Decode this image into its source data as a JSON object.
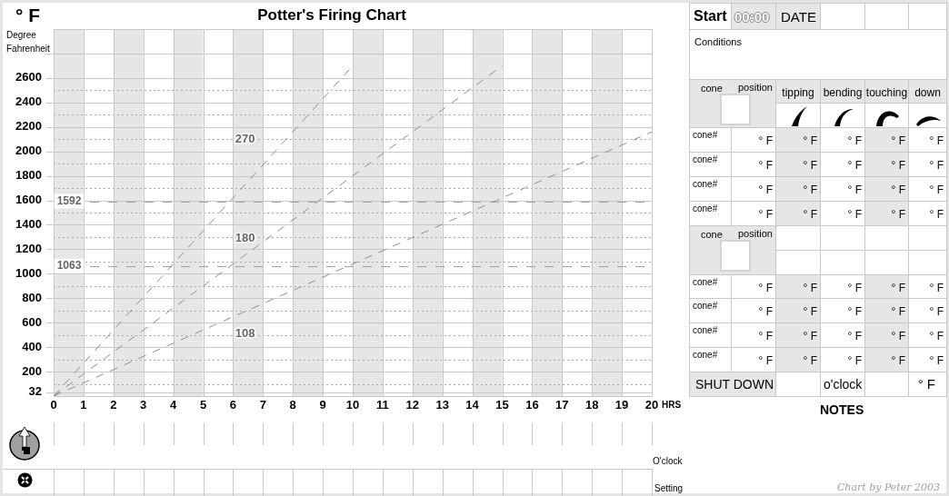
{
  "chart_data": [
    {
      "type": "line",
      "title": "Potter's Firing Chart",
      "xlabel": "HRS",
      "ylabel": "Degree Fahrenheit",
      "series": [
        {
          "name": "270",
          "color": "#909090",
          "x": [
            0,
            10
          ],
          "values": [
            0,
            2700
          ]
        },
        {
          "name": "180",
          "color": "#909090",
          "x": [
            0,
            15
          ],
          "values": [
            0,
            2700
          ]
        },
        {
          "name": "108",
          "color": "#909090",
          "x": [
            0,
            20
          ],
          "values": [
            0,
            2160
          ]
        }
      ],
      "line_style": "dashed",
      "xlim": [
        0,
        20
      ],
      "xticks": [
        0,
        1,
        2,
        3,
        4,
        5,
        6,
        7,
        8,
        9,
        10,
        11,
        12,
        13,
        14,
        15,
        16,
        17,
        18,
        19,
        20
      ],
      "ylim": [
        0,
        3000
      ],
      "yticks": [
        32,
        {
          "value": 100,
          "label": null
        },
        200,
        {
          "value": 300,
          "label": null
        },
        400,
        {
          "value": 500,
          "label": null
        },
        600,
        {
          "value": 700,
          "label": null
        },
        800,
        {
          "value": 900,
          "label": null
        },
        1000,
        {
          "value": 1100,
          "label": null
        },
        1200,
        {
          "value": 1300,
          "label": null
        },
        1400,
        {
          "value": 1500,
          "label": null
        },
        1600,
        {
          "value": 1700,
          "label": null
        },
        1800,
        {
          "value": 1900,
          "label": null
        },
        2000,
        {
          "value": 2100,
          "label": null
        },
        2200,
        {
          "value": 2300,
          "label": null
        },
        2400,
        {
          "value": 2500,
          "label": null
        },
        2600,
        {
          "value": 2800,
          "label": null
        }
      ],
      "grid": true,
      "bands": [
        {
          "axis": "x",
          "from": 0,
          "to": 1,
          "color": "#e6e6e6"
        },
        {
          "axis": "x",
          "from": 2,
          "to": 3,
          "color": "#e6e6e6"
        },
        {
          "axis": "x",
          "from": 4,
          "to": 5,
          "color": "#e6e6e6"
        },
        {
          "axis": "x",
          "from": 6,
          "to": 7,
          "color": "#e6e6e6"
        },
        {
          "axis": "x",
          "from": 8,
          "to": 9,
          "color": "#e6e6e6"
        },
        {
          "axis": "x",
          "from": 10,
          "to": 11,
          "color": "#e6e6e6"
        },
        {
          "axis": "x",
          "from": 12,
          "to": 13,
          "color": "#e6e6e6"
        },
        {
          "axis": "x",
          "from": 14,
          "to": 15,
          "color": "#e6e6e6"
        },
        {
          "axis": "x",
          "from": 16,
          "to": 17,
          "color": "#e6e6e6"
        },
        {
          "axis": "x",
          "from": 18,
          "to": 19,
          "color": "#e6e6e6"
        }
      ],
      "ref_lines": [
        {
          "axis": "y",
          "value": 1592,
          "label": "1592",
          "color": "#a0a0a0",
          "line_style": "dashed"
        },
        {
          "axis": "y",
          "value": 1063,
          "label": "1063",
          "color": "#a0a0a0",
          "line_style": "dashed"
        }
      ],
      "annotations": [
        "° F",
        "O'clock",
        "Setting"
      ]
    },
    {
      "type": "other",
      "annotations": [
        "Start",
        "00:00",
        "DATE",
        "Conditions",
        "cone",
        "position",
        "tipping",
        "bending",
        "touching",
        "down",
        "cone#",
        "° F",
        "° F",
        "° F",
        "° F",
        "° F",
        "cone#",
        "° F",
        "° F",
        "° F",
        "° F",
        "° F",
        "cone#",
        "° F",
        "° F",
        "° F",
        "° F",
        "° F",
        "cone#",
        "° F",
        "° F",
        "° F",
        "° F",
        "° F",
        "cone",
        "position",
        "cone#",
        "° F",
        "° F",
        "° F",
        "° F",
        "° F",
        "cone#",
        "° F",
        "° F",
        "° F",
        "° F",
        "° F",
        "cone#",
        "° F",
        "° F",
        "° F",
        "° F",
        "° F",
        "cone#",
        "° F",
        "° F",
        "° F",
        "° F",
        "° F",
        "SHUT DOWN",
        "o'clock",
        "° F",
        "NOTES",
        "Chart by Peter 2003"
      ]
    }
  ]
}
